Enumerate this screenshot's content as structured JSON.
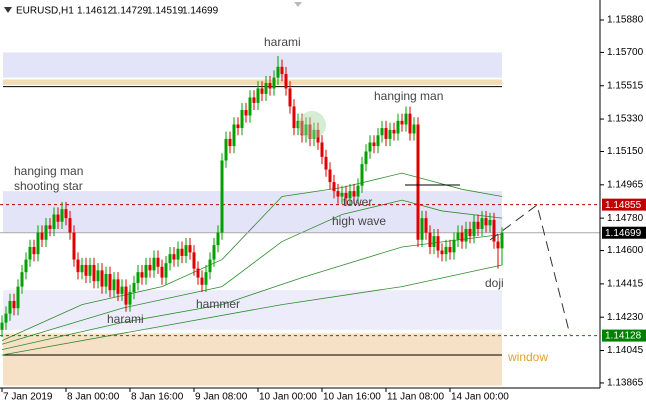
{
  "chart_data": {
    "type": "candlestick",
    "header": {
      "symbol": "EURUSD,H1",
      "ohlc": [
        "1.14612",
        "1.14729",
        "1.14519",
        "1.14699"
      ]
    },
    "up_color": "#00a000",
    "down_color": "#e00000",
    "xlim": [
      0,
      126
    ],
    "xticks": [
      {
        "value": 0,
        "label": "7 Jan 2019"
      },
      {
        "value": 16,
        "label": "8 Jan 00:00"
      },
      {
        "value": 32,
        "label": "8 Jan 16:00"
      },
      {
        "value": 48,
        "label": "9 Jan 08:00"
      },
      {
        "value": 64,
        "label": "10 Jan 00:00"
      },
      {
        "value": 80,
        "label": "10 Jan 16:00"
      },
      {
        "value": 96,
        "label": "11 Jan 08:00"
      },
      {
        "value": 112,
        "label": "14 Jan 00:00"
      }
    ],
    "ylim": [
      1.13837,
      1.15991
    ],
    "yticks": [
      {
        "value": 1.1588,
        "label": "1.15880"
      },
      {
        "value": 1.157,
        "label": "1.15700"
      },
      {
        "value": 1.15515,
        "label": "1.15515"
      },
      {
        "value": 1.1533,
        "label": "1.15330"
      },
      {
        "value": 1.1515,
        "label": "1.15150"
      },
      {
        "value": 1.14965,
        "label": "1.14965"
      },
      {
        "value": 1.1478,
        "label": "1.14780"
      },
      {
        "value": 1.146,
        "label": "1.14600"
      },
      {
        "value": 1.14415,
        "label": "1.14415"
      },
      {
        "value": 1.1423,
        "label": "1.14230"
      },
      {
        "value": 1.14045,
        "label": "1.14045"
      },
      {
        "value": 1.13865,
        "label": "1.13865"
      }
    ],
    "open": [
      1.1416,
      1.142,
      1.1425,
      1.1432,
      1.1428,
      1.144,
      1.1448,
      1.1455,
      1.1462,
      1.1458,
      1.147,
      1.1466,
      1.1474,
      1.1472,
      1.148,
      1.1476,
      1.1483,
      1.1478,
      1.147,
      1.1455,
      1.1448,
      1.1452,
      1.1446,
      1.1452,
      1.1443,
      1.1449,
      1.144,
      1.1447,
      1.1438,
      1.1444,
      1.1436,
      1.144,
      1.143,
      1.1437,
      1.1442,
      1.1448,
      1.1445,
      1.1452,
      1.1449,
      1.1456,
      1.1451,
      1.1445,
      1.1453,
      1.1458,
      1.1455,
      1.1461,
      1.1457,
      1.1463,
      1.1459,
      1.145,
      1.1445,
      1.1441,
      1.1448,
      1.1455,
      1.1463,
      1.147,
      1.151,
      1.1522,
      1.1518,
      1.153,
      1.1528,
      1.1538,
      1.1535,
      1.1545,
      1.1542,
      1.155,
      1.1547,
      1.1553,
      1.155,
      1.1556,
      1.1562,
      1.1558,
      1.155,
      1.154,
      1.1528,
      1.1532,
      1.1524,
      1.153,
      1.1522,
      1.1527,
      1.152,
      1.1512,
      1.1505,
      1.1498,
      1.1493,
      1.149,
      1.1492,
      1.1489,
      1.1493,
      1.149,
      1.1496,
      1.1508,
      1.1515,
      1.152,
      1.1518,
      1.1524,
      1.1528,
      1.1522,
      1.1527,
      1.1525,
      1.1532,
      1.153,
      1.1536,
      1.1525,
      1.153,
      1.1466,
      1.1478,
      1.147,
      1.1462,
      1.1468,
      1.146,
      1.1458,
      1.1462,
      1.1459,
      1.1466,
      1.147,
      1.1465,
      1.1472,
      1.1468,
      1.1476,
      1.1472,
      1.1478,
      1.1474,
      1.1477,
      1.1465,
      1.14612
    ],
    "high": [
      1.1424,
      1.1429,
      1.1436,
      1.1436,
      1.1444,
      1.1452,
      1.1459,
      1.1466,
      1.1466,
      1.1474,
      1.1474,
      1.1478,
      1.1478,
      1.1484,
      1.1484,
      1.1487,
      1.1487,
      1.1482,
      1.1474,
      1.1459,
      1.1456,
      1.1456,
      1.1456,
      1.1456,
      1.1453,
      1.1453,
      1.1451,
      1.1451,
      1.1448,
      1.1448,
      1.1444,
      1.1444,
      1.1441,
      1.1446,
      1.1452,
      1.1452,
      1.1456,
      1.1456,
      1.146,
      1.146,
      1.1455,
      1.1457,
      1.1462,
      1.1462,
      1.1465,
      1.1465,
      1.1467,
      1.1467,
      1.1463,
      1.1454,
      1.1449,
      1.1452,
      1.1459,
      1.1467,
      1.1474,
      1.1514,
      1.1526,
      1.1526,
      1.1534,
      1.1534,
      1.1542,
      1.1542,
      1.1549,
      1.1549,
      1.1554,
      1.1554,
      1.1557,
      1.1557,
      1.156,
      1.1568,
      1.1566,
      1.1562,
      1.1554,
      1.1544,
      1.1536,
      1.1536,
      1.1534,
      1.1534,
      1.1531,
      1.1531,
      1.1524,
      1.1516,
      1.1509,
      1.1502,
      1.1497,
      1.1496,
      1.1496,
      1.1497,
      1.1497,
      1.15,
      1.1512,
      1.1519,
      1.1524,
      1.1524,
      1.1528,
      1.1532,
      1.1532,
      1.1531,
      1.1531,
      1.1536,
      1.1536,
      1.154,
      1.154,
      1.1534,
      1.1534,
      1.1482,
      1.1482,
      1.1474,
      1.1472,
      1.1472,
      1.1464,
      1.1466,
      1.1466,
      1.147,
      1.1474,
      1.1474,
      1.1476,
      1.1476,
      1.148,
      1.148,
      1.1482,
      1.1482,
      1.1481,
      1.1481,
      1.1469,
      1.14729
    ],
    "low": [
      1.1412,
      1.1416,
      1.1421,
      1.1424,
      1.1424,
      1.1436,
      1.1444,
      1.1451,
      1.1454,
      1.1454,
      1.1462,
      1.1462,
      1.1468,
      1.1468,
      1.1472,
      1.1472,
      1.1474,
      1.1466,
      1.1451,
      1.1444,
      1.1444,
      1.1442,
      1.1442,
      1.1439,
      1.1439,
      1.1436,
      1.1436,
      1.1434,
      1.1434,
      1.1432,
      1.1432,
      1.1426,
      1.1426,
      1.1433,
      1.1438,
      1.1441,
      1.1441,
      1.1445,
      1.1445,
      1.1447,
      1.1441,
      1.1441,
      1.1449,
      1.1451,
      1.1451,
      1.1453,
      1.1453,
      1.1455,
      1.1446,
      1.1441,
      1.1437,
      1.1437,
      1.1444,
      1.1451,
      1.1459,
      1.1466,
      1.1506,
      1.1514,
      1.1514,
      1.1524,
      1.1524,
      1.1531,
      1.1531,
      1.1538,
      1.1538,
      1.1543,
      1.1543,
      1.1546,
      1.1546,
      1.1552,
      1.1554,
      1.1546,
      1.1536,
      1.1524,
      1.1524,
      1.152,
      1.152,
      1.1518,
      1.1518,
      1.1516,
      1.1508,
      1.1501,
      1.1494,
      1.1489,
      1.1486,
      1.1486,
      1.1485,
      1.1485,
      1.1486,
      1.1486,
      1.1492,
      1.1504,
      1.1511,
      1.1514,
      1.1514,
      1.152,
      1.1518,
      1.1518,
      1.1521,
      1.1521,
      1.1526,
      1.1526,
      1.1521,
      1.1521,
      1.1462,
      1.1462,
      1.1466,
      1.1458,
      1.1458,
      1.1456,
      1.1454,
      1.1454,
      1.1455,
      1.1455,
      1.1462,
      1.1461,
      1.1461,
      1.1464,
      1.1464,
      1.1468,
      1.1468,
      1.147,
      1.147,
      1.1461,
      1.145,
      1.14519
    ],
    "close": [
      1.142,
      1.1425,
      1.1432,
      1.1428,
      1.144,
      1.1448,
      1.1455,
      1.1462,
      1.1458,
      1.147,
      1.1466,
      1.1474,
      1.1472,
      1.148,
      1.1476,
      1.1483,
      1.1478,
      1.147,
      1.1455,
      1.1448,
      1.1452,
      1.1446,
      1.1452,
      1.1443,
      1.1449,
      1.144,
      1.1447,
      1.1438,
      1.1444,
      1.1436,
      1.144,
      1.143,
      1.1437,
      1.1442,
      1.1448,
      1.1445,
      1.1452,
      1.1449,
      1.1456,
      1.1451,
      1.1445,
      1.1453,
      1.1458,
      1.1455,
      1.1461,
      1.1457,
      1.1463,
      1.1459,
      1.145,
      1.1445,
      1.1441,
      1.1448,
      1.1455,
      1.1463,
      1.147,
      1.151,
      1.1522,
      1.1518,
      1.153,
      1.1528,
      1.1538,
      1.1535,
      1.1545,
      1.1542,
      1.155,
      1.1547,
      1.1553,
      1.155,
      1.1556,
      1.1562,
      1.1558,
      1.155,
      1.154,
      1.1528,
      1.1532,
      1.1524,
      1.153,
      1.1522,
      1.1527,
      1.152,
      1.1512,
      1.1505,
      1.1498,
      1.1493,
      1.149,
      1.1492,
      1.1489,
      1.1493,
      1.149,
      1.1496,
      1.1508,
      1.1515,
      1.152,
      1.1518,
      1.1524,
      1.1528,
      1.1522,
      1.1527,
      1.1525,
      1.1532,
      1.153,
      1.1536,
      1.1525,
      1.153,
      1.1466,
      1.1478,
      1.147,
      1.1462,
      1.1468,
      1.146,
      1.1458,
      1.1462,
      1.1459,
      1.1466,
      1.147,
      1.1465,
      1.1472,
      1.1468,
      1.1476,
      1.1472,
      1.1478,
      1.1474,
      1.1477,
      1.1465,
      1.14612,
      1.14699
    ],
    "moving_averages": [
      {
        "color": "#2e8b2e",
        "x": [
          0,
          20,
          40,
          55,
          70,
          85,
          100,
          105,
          115,
          125
        ],
        "values": [
          1.141,
          1.143,
          1.144,
          1.1455,
          1.149,
          1.1495,
          1.1503,
          1.15,
          1.1494,
          1.149
        ]
      },
      {
        "color": "#2e8b2e",
        "x": [
          0,
          30,
          55,
          70,
          85,
          100,
          110,
          125
        ],
        "values": [
          1.1408,
          1.1428,
          1.144,
          1.1465,
          1.148,
          1.1488,
          1.1482,
          1.1478
        ]
      },
      {
        "color": "#2e8b2e",
        "x": [
          0,
          30,
          55,
          75,
          100,
          125
        ],
        "values": [
          1.1405,
          1.142,
          1.143,
          1.1445,
          1.1462,
          1.1469
        ]
      },
      {
        "color": "#2e8b2e",
        "x": [
          0,
          40,
          70,
          100,
          125
        ],
        "values": [
          1.1402,
          1.1418,
          1.143,
          1.144,
          1.1452
        ]
      }
    ],
    "zones": [
      {
        "from": 1.1556,
        "to": 1.157,
        "color": "#e4e4f8"
      },
      {
        "from": 1.1552,
        "to": 1.1555,
        "color": "#f3dcb4"
      },
      {
        "from": 1.147,
        "to": 1.1493,
        "color": "#e4e4f8"
      },
      {
        "from": 1.1416,
        "to": 1.1438,
        "color": "#ececfa"
      },
      {
        "from": 1.1385,
        "to": 1.1414,
        "color": "#f6e0c6"
      }
    ],
    "lines": [
      1.1551,
      1.1402
    ],
    "levels": [
      {
        "value": 1.14855,
        "label": "1.14855",
        "color": "#c00000",
        "style": "dashed"
      },
      {
        "value": 1.14699,
        "label": "1.14699",
        "color": "#000000",
        "style": "solid"
      },
      {
        "value": 1.14128,
        "label": "1.14128",
        "color": "#008000",
        "style": "dashed"
      }
    ],
    "annotations": [
      "harami",
      "hanging man",
      "hanging man",
      "shooting star",
      "tower",
      "high wave",
      "hammer",
      "harami",
      "doji",
      "window"
    ]
  }
}
